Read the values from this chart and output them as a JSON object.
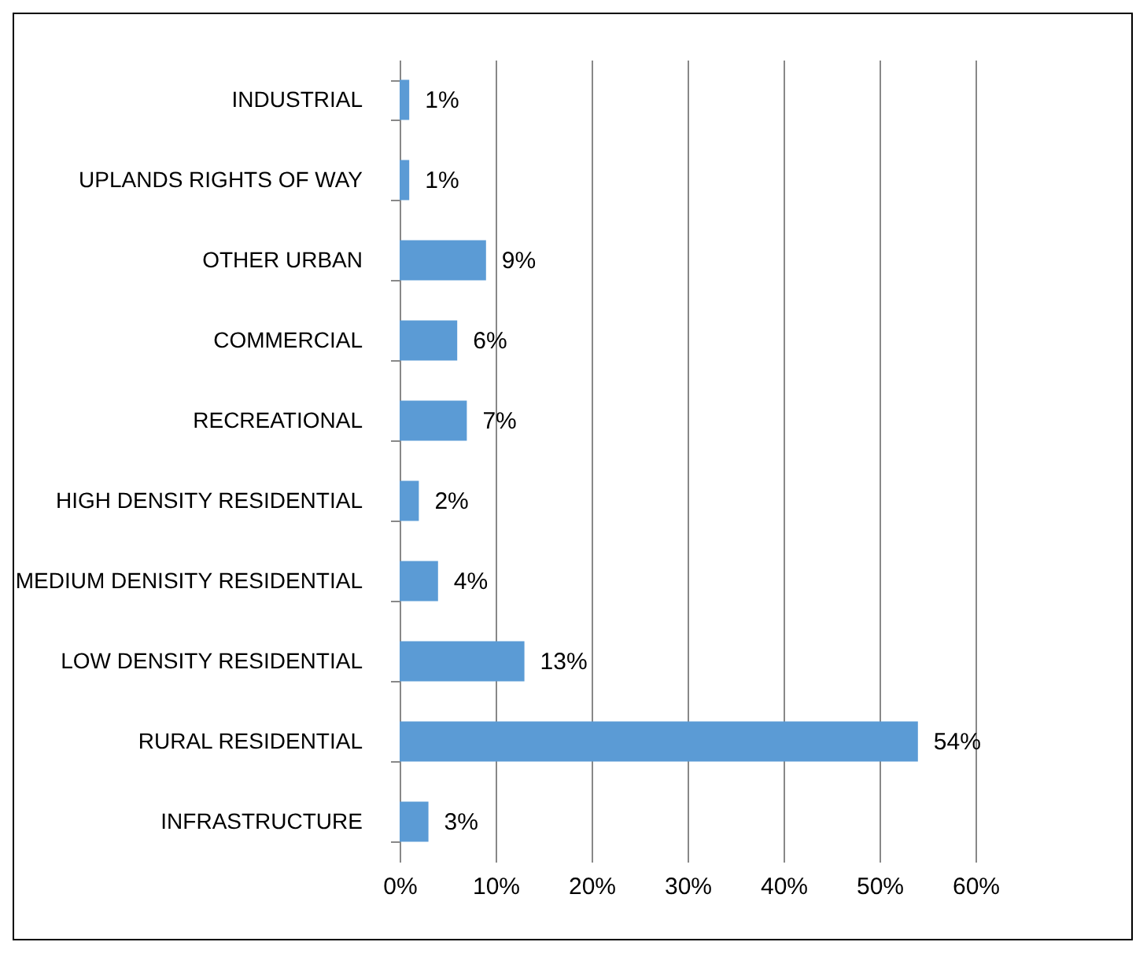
{
  "chart_data": {
    "type": "bar",
    "orientation": "horizontal",
    "categories": [
      "INDUSTRIAL",
      "UPLANDS RIGHTS OF WAY",
      "OTHER URBAN",
      "COMMERCIAL",
      "RECREATIONAL",
      "HIGH DENSITY RESIDENTIAL",
      "MEDIUM DENISITY RESIDENTIAL",
      "LOW DENSITY RESIDENTIAL",
      "RURAL RESIDENTIAL",
      "INFRASTRUCTURE"
    ],
    "values": [
      1,
      1,
      9,
      6,
      7,
      2,
      4,
      13,
      54,
      3
    ],
    "value_labels": [
      "1%",
      "1%",
      "9%",
      "6%",
      "7%",
      "2%",
      "4%",
      "13%",
      "54%",
      "3%"
    ],
    "color": "#5b9bd5",
    "xlim": [
      0,
      60
    ],
    "xticks": [
      {
        "value": 0,
        "label": "0%"
      },
      {
        "value": 10,
        "label": "10%"
      },
      {
        "value": 20,
        "label": "20%"
      },
      {
        "value": 30,
        "label": "30%"
      },
      {
        "value": 40,
        "label": "40%"
      },
      {
        "value": 50,
        "label": "50%"
      },
      {
        "value": 60,
        "label": "60%"
      }
    ],
    "grid": "x"
  }
}
